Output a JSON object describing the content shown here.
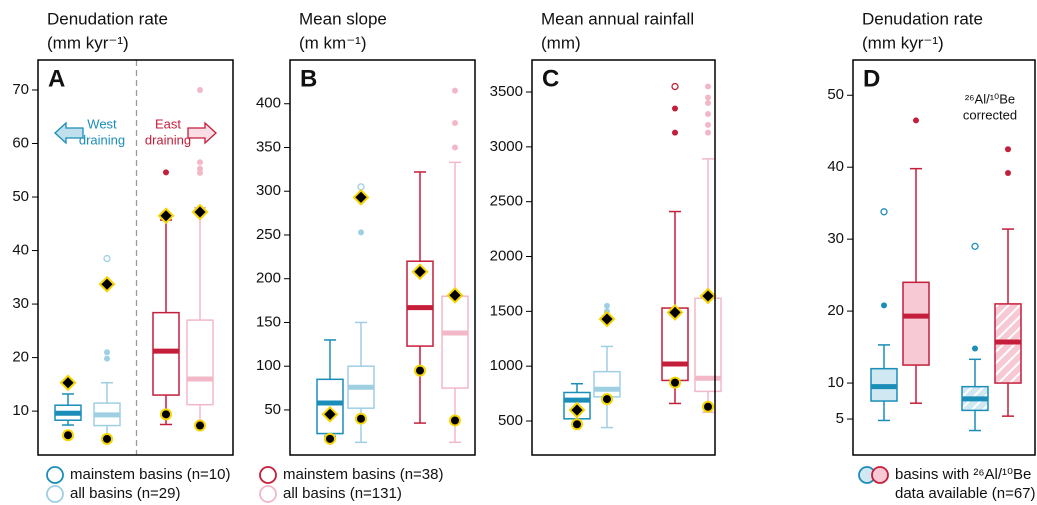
{
  "chart_data": [
    {
      "type": "box",
      "panel": "A",
      "title": "Denudation rate",
      "subtitle": "(mm kyr⁻¹)",
      "ylim": [
        1.8,
        75.6
      ],
      "yticks": [
        10,
        20,
        30,
        40,
        50,
        60,
        70
      ],
      "divider": true,
      "annotations": [
        {
          "lines": [
            "West",
            "draining"
          ],
          "color": "#1a8db8",
          "fill": "#bfe0ec",
          "arrow": "left"
        },
        {
          "lines": [
            "East",
            "draining"
          ],
          "color": "#c41e3a",
          "fill": "#fbdde5",
          "arrow": "right"
        }
      ],
      "boxes": [
        {
          "name": "mainstem basins (n=10)",
          "color": "#1a8db8",
          "fill": "#ffffff",
          "low": 7.4,
          "q1": 8.3,
          "median": 9.6,
          "q3": 11.1,
          "high": 13.2,
          "diamonds": [
            15.3
          ],
          "dots": [
            5.5
          ]
        },
        {
          "name": "all basins (n=29)",
          "color": "#9fcfe3",
          "fill": "#ffffff",
          "low": 5,
          "q1": 7.3,
          "median": 9.3,
          "q3": 11.5,
          "high": 15.3,
          "outliers": [
            19.8,
            21
          ],
          "open_outliers": [
            38.5
          ],
          "diamonds": [
            33.7
          ],
          "dots": [
            4.8
          ]
        },
        {
          "name": "mainstem basins (n=38)",
          "color": "#c41e3a",
          "fill": "#ffffff",
          "low": 7.5,
          "q1": 13,
          "median": 21.2,
          "q3": 28.4,
          "high": 45.7,
          "outliers": [
            54.6
          ],
          "diamonds": [
            46.5
          ],
          "dots": [
            9.4
          ]
        },
        {
          "name": "all basins (n=131)",
          "color": "#f2b8c8",
          "fill": "#ffffff",
          "low": 7.2,
          "q1": 11.2,
          "median": 16,
          "q3": 27,
          "high": 48,
          "outliers": [
            54.5,
            55.3,
            56.5,
            70
          ],
          "diamonds": [
            47.2
          ],
          "dots": [
            7.3
          ]
        }
      ]
    },
    {
      "type": "box",
      "panel": "B",
      "title": "Mean slope",
      "subtitle": "(m km⁻¹)",
      "ylim": [
        -1.5,
        450
      ],
      "yticks": [
        50,
        100,
        150,
        200,
        250,
        300,
        350,
        400
      ],
      "boxes": [
        {
          "name": "mainstem basins (n=10)",
          "color": "#1a8db8",
          "fill": "#ffffff",
          "low": 20,
          "q1": 23,
          "median": 58,
          "q3": 85,
          "high": 130,
          "diamonds": [
            45
          ],
          "dots": [
            17
          ]
        },
        {
          "name": "all basins (n=29)",
          "color": "#9fcfe3",
          "fill": "#ffffff",
          "low": 13,
          "q1": 52,
          "median": 76,
          "q3": 100,
          "high": 150,
          "outliers": [
            253
          ],
          "open_outliers": [
            305
          ],
          "diamonds": [
            293
          ],
          "dots": [
            40
          ]
        },
        {
          "name": "mainstem basins (n=38)",
          "color": "#c41e3a",
          "fill": "#ffffff",
          "low": 35,
          "q1": 123,
          "median": 167,
          "q3": 220,
          "high": 322,
          "diamonds": [
            208
          ],
          "dots": [
            95
          ]
        },
        {
          "name": "all basins (n=131)",
          "color": "#f2b8c8",
          "fill": "#ffffff",
          "low": 13,
          "q1": 75,
          "median": 138,
          "q3": 180,
          "high": 333,
          "outliers": [
            350,
            378,
            415
          ],
          "diamonds": [
            181
          ],
          "dots": [
            38
          ]
        }
      ]
    },
    {
      "type": "box",
      "panel": "C",
      "title": "Mean annual rainfall",
      "subtitle": "(mm)",
      "ylim": [
        190,
        3792
      ],
      "yticks": [
        500,
        1000,
        1500,
        2000,
        2500,
        3000,
        3500
      ],
      "boxes": [
        {
          "name": "mainstem basins (n=10)",
          "color": "#1a8db8",
          "fill": "#ffffff",
          "low": 470,
          "q1": 520,
          "median": 690,
          "q3": 760,
          "high": 840,
          "diamonds": [
            600
          ],
          "dots": [
            470
          ]
        },
        {
          "name": "all basins (n=29)",
          "color": "#9fcfe3",
          "fill": "#ffffff",
          "low": 440,
          "q1": 720,
          "median": 790,
          "q3": 950,
          "high": 1180,
          "outliers": [
            1500,
            1550
          ],
          "diamonds": [
            1430
          ],
          "dots": [
            700
          ]
        },
        {
          "name": "mainstem basins (n=38)",
          "color": "#c41e3a",
          "fill": "#ffffff",
          "low": 660,
          "q1": 870,
          "median": 1020,
          "q3": 1530,
          "high": 2410,
          "outliers": [
            3130,
            3350
          ],
          "open_outliers": [
            3550
          ],
          "diamonds": [
            1490
          ],
          "dots": [
            850
          ]
        },
        {
          "name": "all basins (n=131)",
          "color": "#f2b8c8",
          "fill": "#ffffff",
          "low": 580,
          "q1": 770,
          "median": 890,
          "q3": 1620,
          "high": 2890,
          "outliers": [
            3130,
            3200,
            3300,
            3400,
            3450,
            3550
          ],
          "diamonds": [
            1640
          ],
          "dots": [
            630
          ]
        }
      ]
    },
    {
      "type": "box",
      "panel": "D",
      "title": "Denudation rate",
      "subtitle": "(mm kyr⁻¹)",
      "ylim": [
        0,
        54.9
      ],
      "yticks": [
        5,
        10,
        20,
        30,
        40,
        50
      ],
      "annotations": [
        {
          "lines": [
            "²⁶Al/¹⁰Be",
            "corrected"
          ],
          "color": "#111111"
        }
      ],
      "boxes": [
        {
          "color": "#1a8db8",
          "fill": "#cfe8f2",
          "low": 4.8,
          "q1": 7.5,
          "median": 9.5,
          "q3": 12,
          "high": 15.3,
          "outliers": [
            20.8
          ],
          "open_outliers": [
            33.8
          ]
        },
        {
          "color": "#c41e3a",
          "fill": "#f7c9d5",
          "low": 7.2,
          "q1": 12.5,
          "median": 19.3,
          "q3": 24,
          "high": 39.8,
          "outliers": [
            46.5
          ]
        },
        {
          "color": "#1a8db8",
          "fill": "#cfe8f2",
          "hatched": true,
          "low": 3.4,
          "q1": 6.2,
          "median": 7.8,
          "q3": 9.5,
          "high": 13.3,
          "outliers": [
            14.8
          ],
          "open_outliers": [
            29
          ]
        },
        {
          "color": "#c41e3a",
          "fill": "#f7c9d5",
          "hatched": true,
          "low": 5.4,
          "q1": 10,
          "median": 15.7,
          "q3": 21,
          "high": 31.4,
          "outliers": [
            39.2,
            42.5
          ]
        }
      ]
    }
  ],
  "legend": [
    {
      "lines": [
        "mainstem basins (n=10)"
      ],
      "colors": [
        "#1a8db8"
      ]
    },
    {
      "lines": [
        "all basins (n=29)"
      ],
      "colors": [
        "#9fcfe3"
      ]
    },
    {
      "lines": [
        "mainstem basins (n=38)"
      ],
      "colors": [
        "#c41e3a"
      ]
    },
    {
      "lines": [
        "all basins (n=131)"
      ],
      "colors": [
        "#f2b8c8"
      ]
    },
    {
      "lines": [
        "basins with ²⁶Al/¹⁰Be",
        "data available (n=67)"
      ],
      "colors": [
        "#1a8db8",
        "#c41e3a"
      ],
      "fills": [
        "#cfe8f2",
        "#f7c9d5"
      ]
    }
  ]
}
